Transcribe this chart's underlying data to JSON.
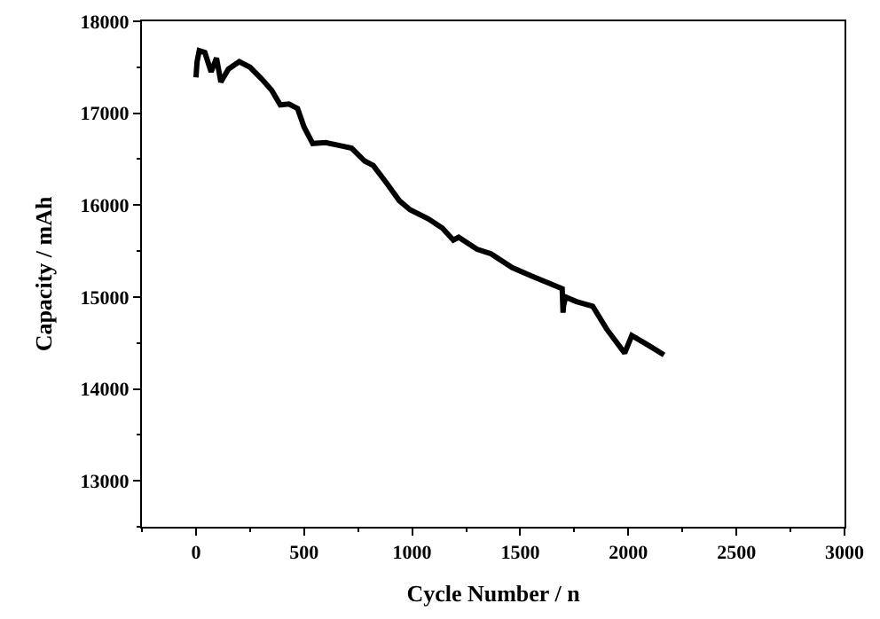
{
  "chart_data": {
    "type": "line",
    "xlabel": "Cycle Number / n",
    "ylabel": "Capacity / mAh",
    "x": [
      0,
      5,
      15,
      41,
      70,
      95,
      115,
      150,
      200,
      250,
      305,
      350,
      390,
      430,
      470,
      500,
      540,
      600,
      660,
      720,
      780,
      820,
      885,
      940,
      990,
      1075,
      1140,
      1190,
      1215,
      1300,
      1365,
      1463,
      1550,
      1694,
      1698,
      1700,
      1710,
      1760,
      1835,
      1900,
      1983,
      2016,
      2060,
      2110,
      2165
    ],
    "series": [
      {
        "color": "#000000",
        "values": [
          17390,
          17560,
          17680,
          17660,
          17450,
          17600,
          17340,
          17480,
          17560,
          17500,
          17370,
          17250,
          17090,
          17100,
          17050,
          16850,
          16670,
          16680,
          16650,
          16620,
          16480,
          16430,
          16230,
          16050,
          15950,
          15850,
          15750,
          15620,
          15650,
          15520,
          15470,
          15320,
          15230,
          15090,
          14830,
          14900,
          15000,
          14950,
          14900,
          14650,
          14390,
          14580,
          14520,
          14450,
          14370
        ]
      }
    ],
    "xlim": [
      -250,
      3000
    ],
    "xticks": [
      0,
      500,
      1000,
      1500,
      2000,
      2500,
      3000
    ],
    "ylim": [
      12500,
      18000
    ],
    "yticks": [
      13000,
      14000,
      15000,
      16000,
      17000,
      18000
    ],
    "grid": false,
    "marker": "none",
    "line_style": "solid"
  }
}
